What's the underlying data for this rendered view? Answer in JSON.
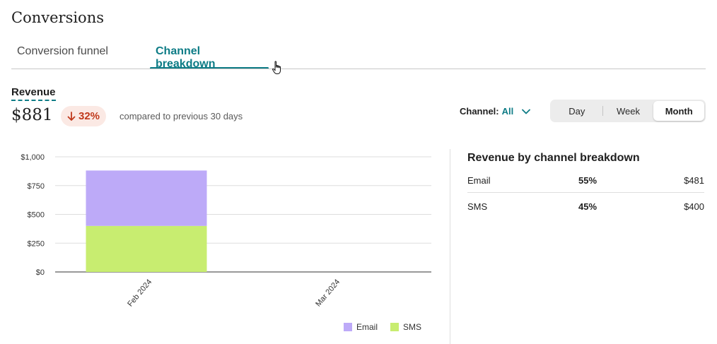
{
  "page": {
    "title": "Conversions"
  },
  "tabs": [
    {
      "label": "Conversion funnel",
      "active": false
    },
    {
      "label": "Channel breakdown",
      "active": true
    }
  ],
  "metric": {
    "label": "Revenue",
    "value": "$881",
    "change": "32%",
    "change_direction": "down",
    "compare_text": "compared to previous 30 days"
  },
  "filter": {
    "label": "Channel:",
    "value": "All"
  },
  "period": {
    "options": [
      "Day",
      "Week",
      "Month"
    ],
    "selected": "Month"
  },
  "colors": {
    "accent": "#0e7c86",
    "email": "#bdaaf8",
    "sms": "#c8ed70",
    "negative": "#c0391b"
  },
  "chart_data": {
    "type": "bar",
    "stacked": true,
    "categories": [
      "Feb 2024",
      "Mar 2024"
    ],
    "series": [
      {
        "name": "SMS",
        "values": [
          400,
          0
        ]
      },
      {
        "name": "Email",
        "values": [
          481,
          0
        ]
      }
    ],
    "ylim": [
      0,
      1000
    ],
    "yticks": [
      0,
      250,
      500,
      750,
      1000
    ],
    "ytick_labels": [
      "$0",
      "$250",
      "$500",
      "$750",
      "$1,000"
    ],
    "grid": true,
    "legend": "bottom-right",
    "legend_entries": [
      "Email",
      "SMS"
    ]
  },
  "breakdown": {
    "title": "Revenue by channel breakdown",
    "rows": [
      {
        "channel": "Email",
        "percent": "55%",
        "amount": "$481"
      },
      {
        "channel": "SMS",
        "percent": "45%",
        "amount": "$400"
      }
    ]
  }
}
